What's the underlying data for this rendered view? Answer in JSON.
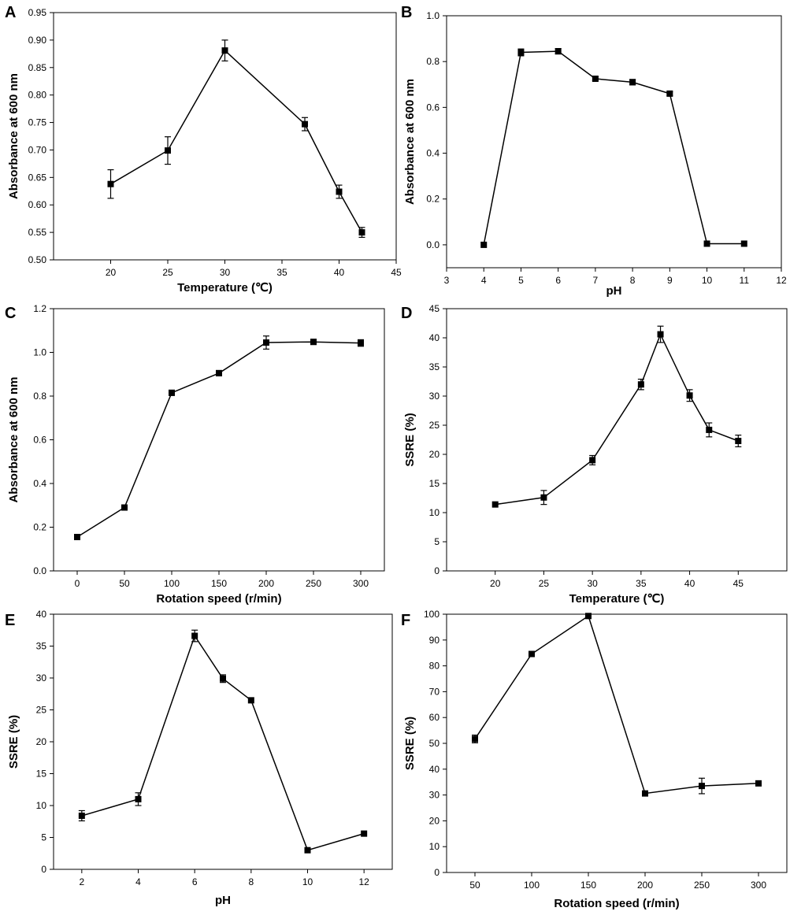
{
  "chart_data": [
    {
      "id": "A",
      "type": "line",
      "panel_label": "A",
      "xlabel": "Temperature (℃)",
      "ylabel": "Absorbance at 600 nm",
      "xlim": [
        15,
        45
      ],
      "ylim": [
        0.5,
        0.95
      ],
      "xticks": [
        20,
        25,
        30,
        35,
        40,
        45
      ],
      "yticks": [
        0.5,
        0.55,
        0.6,
        0.65,
        0.7,
        0.75,
        0.8,
        0.85,
        0.9,
        0.95
      ],
      "ytick_decimals": 2,
      "x": [
        20,
        25,
        30,
        37,
        40,
        42
      ],
      "y": [
        0.638,
        0.699,
        0.881,
        0.747,
        0.624,
        0.55
      ],
      "err": [
        0.026,
        0.025,
        0.019,
        0.012,
        0.012,
        0.009
      ]
    },
    {
      "id": "B",
      "type": "line",
      "panel_label": "B",
      "xlabel": "pH",
      "ylabel": "Absorbance at 600 nm",
      "xlim": [
        3,
        12
      ],
      "ylim": [
        -0.1,
        1.0
      ],
      "xticks": [
        3,
        4,
        5,
        6,
        7,
        8,
        9,
        10,
        11,
        12
      ],
      "yticks": [
        0.0,
        0.2,
        0.4,
        0.6,
        0.8,
        1.0
      ],
      "ytick_decimals": 1,
      "x": [
        4,
        5,
        6,
        7,
        8,
        9,
        10,
        11
      ],
      "y": [
        0.0,
        0.84,
        0.845,
        0.725,
        0.71,
        0.66,
        0.005,
        0.005
      ],
      "err": [
        0,
        0.015,
        0.012,
        0.008,
        0.012,
        0.008,
        0,
        0
      ]
    },
    {
      "id": "C",
      "type": "line",
      "panel_label": "C",
      "xlabel": "Rotation speed (r/min)",
      "ylabel": "Absorbance at 600 nm",
      "xlim": [
        -25,
        325
      ],
      "ylim": [
        0.0,
        1.2
      ],
      "xticks": [
        0,
        50,
        100,
        150,
        200,
        250,
        300
      ],
      "yticks": [
        0.0,
        0.2,
        0.4,
        0.6,
        0.8,
        1.0,
        1.2
      ],
      "ytick_decimals": 1,
      "x": [
        0,
        50,
        100,
        150,
        200,
        250,
        300
      ],
      "y": [
        0.155,
        0.29,
        0.815,
        0.905,
        1.045,
        1.048,
        1.043
      ],
      "err": [
        0,
        0,
        0.012,
        0.012,
        0.03,
        0.012,
        0.015
      ]
    },
    {
      "id": "D",
      "type": "line",
      "panel_label": "D",
      "xlabel": "Temperature (℃)",
      "ylabel": "SSRE (%)",
      "xlim": [
        15,
        50
      ],
      "ylim": [
        0,
        45
      ],
      "xticks": [
        20,
        25,
        30,
        35,
        40,
        45
      ],
      "yticks": [
        0,
        5,
        10,
        15,
        20,
        25,
        30,
        35,
        40,
        45
      ],
      "ytick_decimals": 0,
      "x": [
        20,
        25,
        30,
        35,
        37,
        40,
        42,
        45
      ],
      "y": [
        11.4,
        12.6,
        19.0,
        32.0,
        40.6,
        30.1,
        24.2,
        22.3
      ],
      "err": [
        0,
        1.2,
        0.8,
        0.9,
        1.4,
        1.0,
        1.2,
        1.0
      ]
    },
    {
      "id": "E",
      "type": "line",
      "panel_label": "E",
      "xlabel": "pH",
      "ylabel": "SSRE (%)",
      "xlim": [
        1,
        13
      ],
      "ylim": [
        0,
        40
      ],
      "xticks": [
        2,
        4,
        6,
        8,
        10,
        12
      ],
      "yticks": [
        0,
        5,
        10,
        15,
        20,
        25,
        30,
        35,
        40
      ],
      "ytick_decimals": 0,
      "x": [
        2,
        4,
        6,
        7,
        8,
        10,
        12
      ],
      "y": [
        8.4,
        11.0,
        36.6,
        29.9,
        26.5,
        3.0,
        5.6
      ],
      "err": [
        0.8,
        1.0,
        0.9,
        0.6,
        0,
        0,
        0
      ]
    },
    {
      "id": "F",
      "type": "line",
      "panel_label": "F",
      "xlabel": "Rotation speed (r/min)",
      "ylabel": "SSRE (%)",
      "xlim": [
        25,
        325
      ],
      "ylim": [
        0,
        100
      ],
      "xticks": [
        50,
        100,
        150,
        200,
        250,
        300
      ],
      "yticks": [
        0,
        10,
        20,
        30,
        40,
        50,
        60,
        70,
        80,
        90,
        100
      ],
      "ytick_decimals": 0,
      "x": [
        50,
        100,
        150,
        200,
        250,
        300
      ],
      "y": [
        51.7,
        84.6,
        99.3,
        30.6,
        33.5,
        34.5
      ],
      "err": [
        1.5,
        0.8,
        0,
        0,
        3.0,
        0
      ]
    }
  ]
}
